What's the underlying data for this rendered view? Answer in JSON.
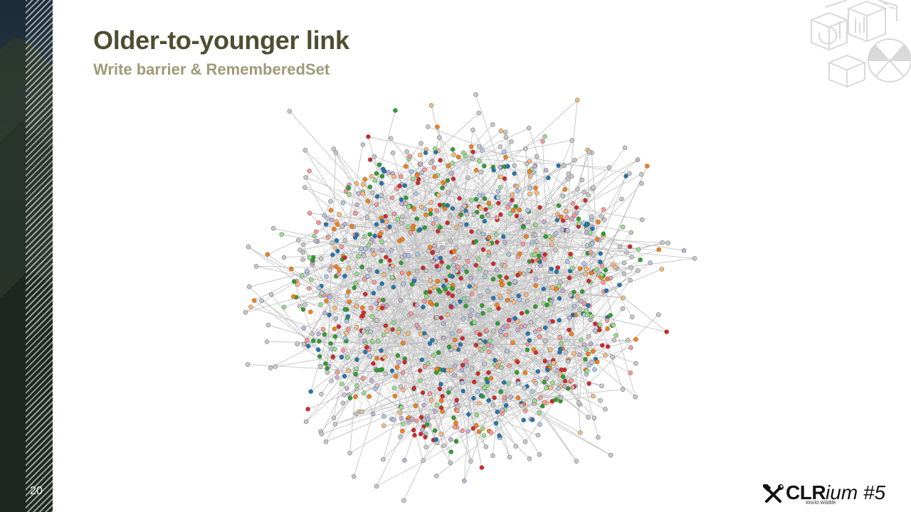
{
  "slide": {
    "title": "Older-to-younger link",
    "subtitle": "Write barrier & RememberedSet",
    "page_number": "20"
  },
  "graph": {
    "node_colors": [
      "#c8c8c8",
      "#1f77b4",
      "#d62728",
      "#2ca02c",
      "#ff7f0e",
      "#ffbb78",
      "#98df8a",
      "#aec7e8",
      "#ff9896",
      "#c5b0d5"
    ],
    "edge_color": "#bdbdbd"
  },
  "logo": {
    "brand_bold": "CLR",
    "brand_italic": "ium #5",
    "tagline": "World Wildlife",
    "icon": "hammer-wrench-icon"
  }
}
